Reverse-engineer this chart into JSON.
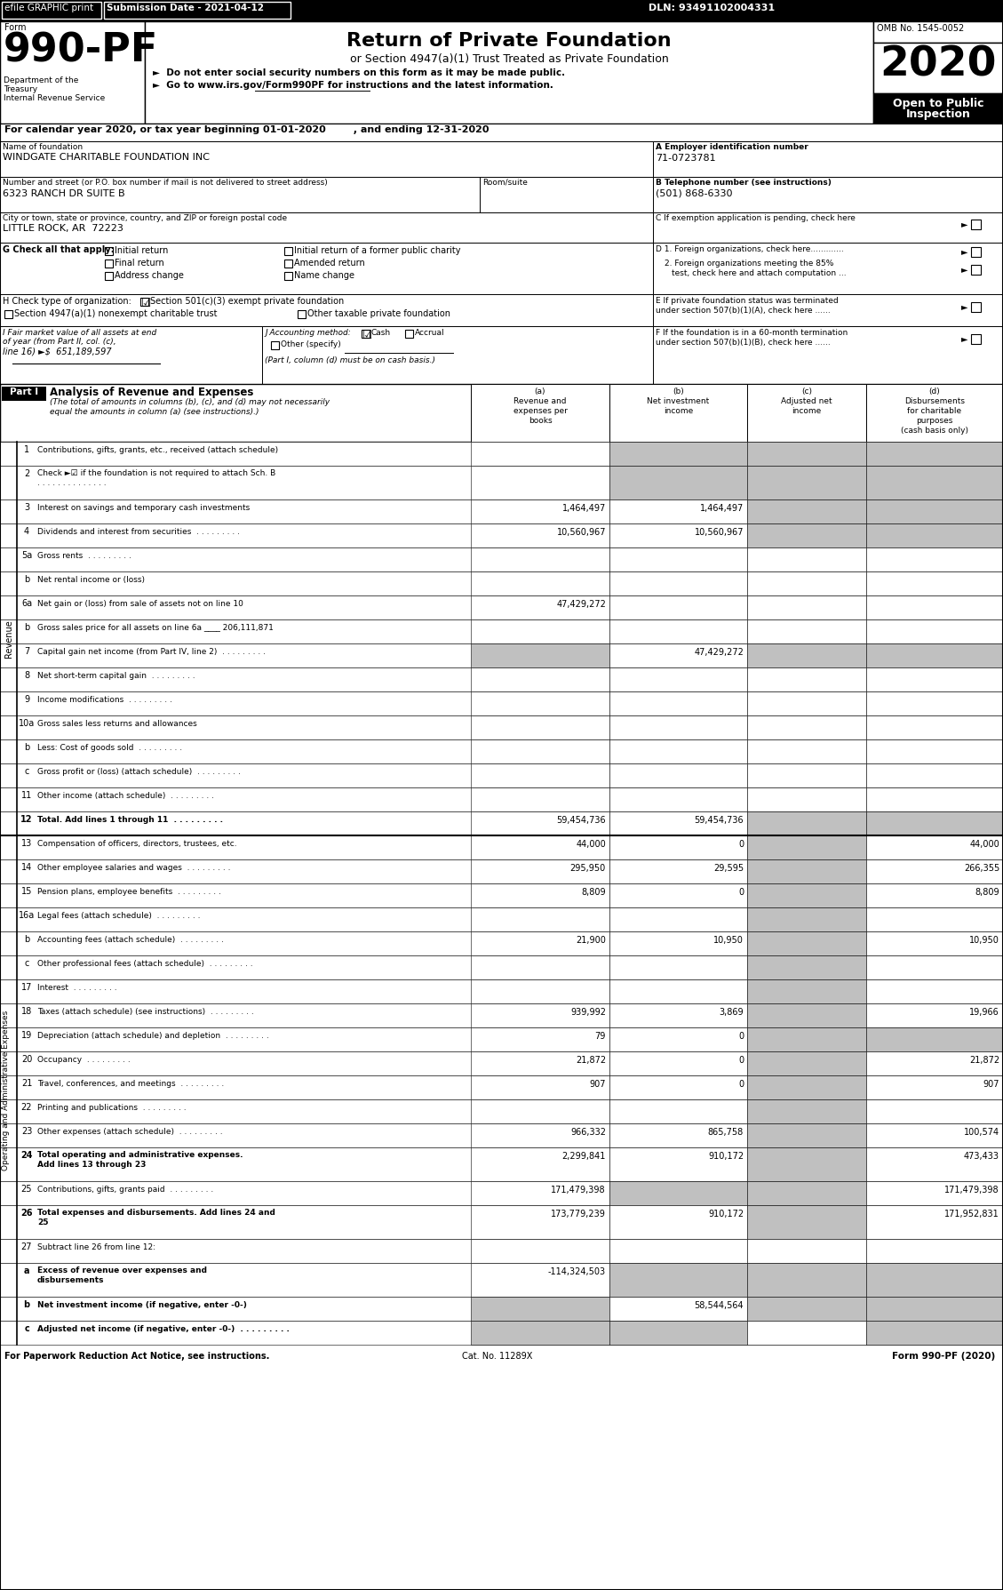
{
  "header_bar": {
    "efile": "efile GRAPHIC print",
    "submission": "Submission Date - 2021-04-12",
    "dln": "DLN: 93491102004331"
  },
  "form_number": "990-PF",
  "form_title": "Return of Private Foundation",
  "form_subtitle": "or Section 4947(a)(1) Trust Treated as Private Foundation",
  "bullet1": "►  Do not enter social security numbers on this form as it may be made public.",
  "bullet2": "►  Go to www.irs.gov/Form990PF for instructions and the latest information.",
  "omb": "OMB No. 1545-0052",
  "calendar_line": "For calendar year 2020, or tax year beginning 01-01-2020        , and ending 12-31-2020",
  "name_label": "Name of foundation",
  "name_value": "WINDGATE CHARITABLE FOUNDATION INC",
  "ein_label": "A Employer identification number",
  "ein_value": "71-0723781",
  "addr_label": "Number and street (or P.O. box number if mail is not delivered to street address)",
  "addr_value": "6323 RANCH DR SUITE B",
  "room_label": "Room/suite",
  "phone_label": "B Telephone number (see instructions)",
  "phone_value": "(501) 868-6330",
  "city_label": "City or town, state or province, country, and ZIP or foreign postal code",
  "city_value": "LITTLE ROCK, AR  72223",
  "rows": [
    {
      "num": "1",
      "label": "Contributions, gifts, grants, etc., received (attach schedule)",
      "dots": false,
      "a": "",
      "b": "",
      "c": "",
      "d": "",
      "shade_b": true,
      "shade_c": true,
      "shade_d": true,
      "tall": false
    },
    {
      "num": "2",
      "label": "Check ►☑ if the foundation is not required to attach Sch. B\n. . . . . . . . . . . . . .",
      "dots": false,
      "a": "",
      "b": "",
      "c": "",
      "d": "",
      "shade_b": true,
      "shade_c": true,
      "shade_d": true,
      "tall": true
    },
    {
      "num": "3",
      "label": "Interest on savings and temporary cash investments",
      "dots": false,
      "a": "1,464,497",
      "b": "1,464,497",
      "c": "",
      "d": "",
      "shade_b": false,
      "shade_c": true,
      "shade_d": true,
      "tall": false
    },
    {
      "num": "4",
      "label": "Dividends and interest from securities",
      "dots": true,
      "a": "10,560,967",
      "b": "10,560,967",
      "c": "",
      "d": "",
      "shade_b": false,
      "shade_c": true,
      "shade_d": true,
      "tall": false
    },
    {
      "num": "5a",
      "label": "Gross rents",
      "dots": true,
      "a": "",
      "b": "",
      "c": "",
      "d": "",
      "shade_b": false,
      "shade_c": false,
      "shade_d": false,
      "tall": false
    },
    {
      "num": "b",
      "label": "Net rental income or (loss)",
      "dots": false,
      "a": "",
      "b": "",
      "c": "",
      "d": "",
      "shade_b": false,
      "shade_c": false,
      "shade_d": false,
      "tall": false
    },
    {
      "num": "6a",
      "label": "Net gain or (loss) from sale of assets not on line 10",
      "dots": false,
      "a": "47,429,272",
      "b": "",
      "c": "",
      "d": "",
      "shade_b": false,
      "shade_c": false,
      "shade_d": false,
      "tall": false
    },
    {
      "num": "b",
      "label": "Gross sales price for all assets on line 6a ____ 206,111,871",
      "dots": false,
      "a": "",
      "b": "",
      "c": "",
      "d": "",
      "shade_b": false,
      "shade_c": false,
      "shade_d": false,
      "tall": false
    },
    {
      "num": "7",
      "label": "Capital gain net income (from Part IV, line 2)",
      "dots": true,
      "a": "",
      "b": "47,429,272",
      "c": "",
      "d": "",
      "shade_a": true,
      "shade_b": false,
      "shade_c": true,
      "shade_d": true,
      "tall": false
    },
    {
      "num": "8",
      "label": "Net short-term capital gain",
      "dots": true,
      "a": "",
      "b": "",
      "c": "",
      "d": "",
      "shade_b": false,
      "shade_c": false,
      "shade_d": false,
      "tall": false
    },
    {
      "num": "9",
      "label": "Income modifications",
      "dots": true,
      "a": "",
      "b": "",
      "c": "",
      "d": "",
      "shade_b": false,
      "shade_c": false,
      "shade_d": false,
      "tall": false
    },
    {
      "num": "10a",
      "label": "Gross sales less returns and allowances",
      "dots": false,
      "a": "",
      "b": "",
      "c": "",
      "d": "",
      "shade_b": false,
      "shade_c": false,
      "shade_d": false,
      "tall": false
    },
    {
      "num": "b",
      "label": "Less: Cost of goods sold",
      "dots": true,
      "a": "",
      "b": "",
      "c": "",
      "d": "",
      "shade_b": false,
      "shade_c": false,
      "shade_d": false,
      "tall": false
    },
    {
      "num": "c",
      "label": "Gross profit or (loss) (attach schedule)",
      "dots": true,
      "a": "",
      "b": "",
      "c": "",
      "d": "",
      "shade_b": false,
      "shade_c": false,
      "shade_d": false,
      "tall": false
    },
    {
      "num": "11",
      "label": "Other income (attach schedule)",
      "dots": true,
      "a": "",
      "b": "",
      "c": "",
      "d": "",
      "shade_b": false,
      "shade_c": false,
      "shade_d": false,
      "tall": false
    },
    {
      "num": "12",
      "label": "Total. Add lines 1 through 11",
      "dots": true,
      "a": "59,454,736",
      "b": "59,454,736",
      "c": "",
      "d": "",
      "shade_b": false,
      "shade_c": true,
      "shade_d": true,
      "tall": false,
      "bold": true
    },
    {
      "num": "13",
      "label": "Compensation of officers, directors, trustees, etc.",
      "dots": false,
      "a": "44,000",
      "b": "0",
      "c": "",
      "d": "44,000",
      "shade_b": false,
      "shade_c": true,
      "shade_d": false,
      "tall": false
    },
    {
      "num": "14",
      "label": "Other employee salaries and wages",
      "dots": true,
      "a": "295,950",
      "b": "29,595",
      "c": "",
      "d": "266,355",
      "shade_b": false,
      "shade_c": true,
      "shade_d": false,
      "tall": false
    },
    {
      "num": "15",
      "label": "Pension plans, employee benefits",
      "dots": true,
      "a": "8,809",
      "b": "0",
      "c": "",
      "d": "8,809",
      "shade_b": false,
      "shade_c": true,
      "shade_d": false,
      "tall": false
    },
    {
      "num": "16a",
      "label": "Legal fees (attach schedule)",
      "dots": true,
      "a": "",
      "b": "",
      "c": "",
      "d": "",
      "shade_b": false,
      "shade_c": true,
      "shade_d": false,
      "tall": false
    },
    {
      "num": "b",
      "label": "Accounting fees (attach schedule)",
      "dots": true,
      "a": "21,900",
      "b": "10,950",
      "c": "",
      "d": "10,950",
      "shade_b": false,
      "shade_c": true,
      "shade_d": false,
      "tall": false
    },
    {
      "num": "c",
      "label": "Other professional fees (attach schedule)",
      "dots": true,
      "a": "",
      "b": "",
      "c": "",
      "d": "",
      "shade_b": false,
      "shade_c": true,
      "shade_d": false,
      "tall": false
    },
    {
      "num": "17",
      "label": "Interest",
      "dots": true,
      "a": "",
      "b": "",
      "c": "",
      "d": "",
      "shade_b": false,
      "shade_c": true,
      "shade_d": false,
      "tall": false
    },
    {
      "num": "18",
      "label": "Taxes (attach schedule) (see instructions)",
      "dots": true,
      "a": "939,992",
      "b": "3,869",
      "c": "",
      "d": "19,966",
      "shade_b": false,
      "shade_c": true,
      "shade_d": false,
      "tall": false
    },
    {
      "num": "19",
      "label": "Depreciation (attach schedule) and depletion",
      "dots": true,
      "a": "79",
      "b": "0",
      "c": "",
      "d": "",
      "shade_b": false,
      "shade_c": true,
      "shade_d": true,
      "tall": false
    },
    {
      "num": "20",
      "label": "Occupancy",
      "dots": true,
      "a": "21,872",
      "b": "0",
      "c": "",
      "d": "21,872",
      "shade_b": false,
      "shade_c": true,
      "shade_d": false,
      "tall": false
    },
    {
      "num": "21",
      "label": "Travel, conferences, and meetings",
      "dots": true,
      "a": "907",
      "b": "0",
      "c": "",
      "d": "907",
      "shade_b": false,
      "shade_c": true,
      "shade_d": false,
      "tall": false
    },
    {
      "num": "22",
      "label": "Printing and publications",
      "dots": true,
      "a": "",
      "b": "",
      "c": "",
      "d": "",
      "shade_b": false,
      "shade_c": true,
      "shade_d": false,
      "tall": false
    },
    {
      "num": "23",
      "label": "Other expenses (attach schedule)",
      "dots": true,
      "a": "966,332",
      "b": "865,758",
      "c": "",
      "d": "100,574",
      "shade_b": false,
      "shade_c": true,
      "shade_d": false,
      "tall": false
    },
    {
      "num": "24",
      "label": "Total operating and administrative expenses.\nAdd lines 13 through 23",
      "dots": true,
      "a": "2,299,841",
      "b": "910,172",
      "c": "",
      "d": "473,433",
      "shade_b": false,
      "shade_c": true,
      "shade_d": false,
      "tall": true,
      "bold": true
    },
    {
      "num": "25",
      "label": "Contributions, gifts, grants paid",
      "dots": true,
      "a": "171,479,398",
      "b": "",
      "c": "",
      "d": "171,479,398",
      "shade_b": true,
      "shade_c": true,
      "shade_d": false,
      "tall": false
    },
    {
      "num": "26",
      "label": "Total expenses and disbursements. Add lines 24 and\n25",
      "dots": false,
      "a": "173,779,239",
      "b": "910,172",
      "c": "",
      "d": "171,952,831",
      "shade_b": false,
      "shade_c": true,
      "shade_d": false,
      "tall": true,
      "bold": true
    },
    {
      "num": "27",
      "label": "Subtract line 26 from line 12:",
      "dots": false,
      "a": "",
      "b": "",
      "c": "",
      "d": "",
      "shade_a": false,
      "shade_b": false,
      "shade_c": false,
      "shade_d": false,
      "tall": false,
      "header27": true
    },
    {
      "num": "a",
      "label": "Excess of revenue over expenses and\ndisbursements",
      "dots": false,
      "a": "-114,324,503",
      "b": "",
      "c": "",
      "d": "",
      "shade_a": false,
      "shade_b": true,
      "shade_c": true,
      "shade_d": true,
      "tall": true,
      "bold": true
    },
    {
      "num": "b",
      "label": "Net investment income (if negative, enter -0-)",
      "dots": false,
      "a": "",
      "b": "58,544,564",
      "c": "",
      "d": "",
      "shade_a": true,
      "shade_b": false,
      "shade_c": true,
      "shade_d": true,
      "tall": false,
      "bold": true
    },
    {
      "num": "c",
      "label": "Adjusted net income (if negative, enter -0-)",
      "dots": true,
      "a": "",
      "b": "",
      "c": "",
      "d": "",
      "shade_a": true,
      "shade_b": true,
      "shade_c": false,
      "shade_d": true,
      "tall": false,
      "bold": true
    }
  ],
  "footer": "For Paperwork Reduction Act Notice, see instructions.",
  "cat_no": "Cat. No. 11289X",
  "form_footer": "Form 990-PF (2020)"
}
